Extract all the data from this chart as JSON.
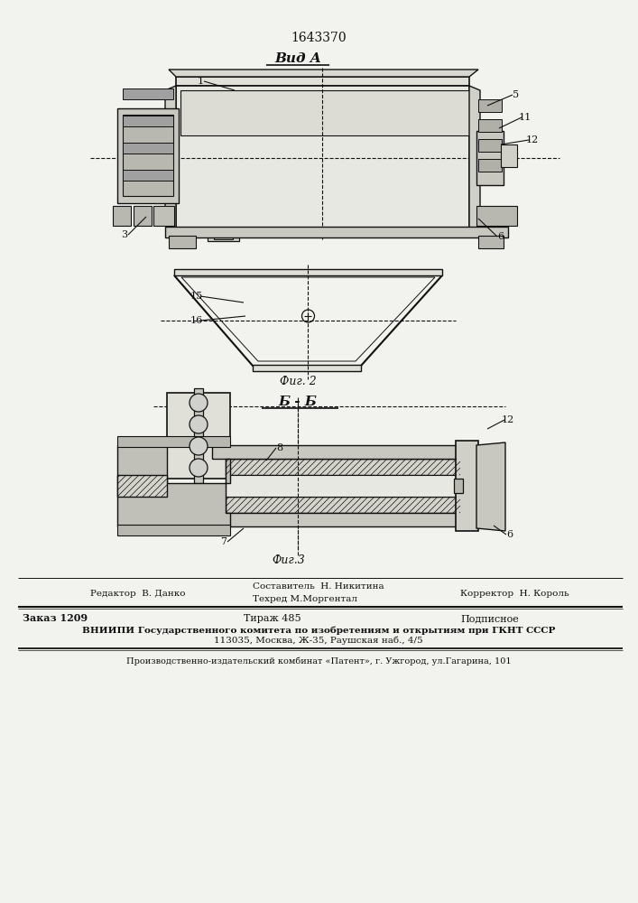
{
  "patent_number": "1643370",
  "view_a_label": "Вид A",
  "fig2_label": "Фиг. 2",
  "section_label": "Б - Б",
  "fig3_label": "Фиг.3",
  "bg_color": "#f2f2ee",
  "line_color": "#111111",
  "footer": {
    "editor": "Редактор  В. Данко",
    "composer": "Составитель  Н. Никитина",
    "techred": "Техред М.Моргентал",
    "corrector": "Корректор  Н. Король",
    "order": "Заказ 1209",
    "print_run": "Тираж 485",
    "subscription": "Подписное",
    "vniip1": "ВНИИПИ Государственного комитета по изобретениям и открытиям при ГКНТ СССР",
    "vniip2": "113035, Москва, Ж-35, Раушская наб., 4/5",
    "production": "Производственно-издательский комбинат «Патент», г. Ужгород, ул.Гагарина, 101"
  }
}
